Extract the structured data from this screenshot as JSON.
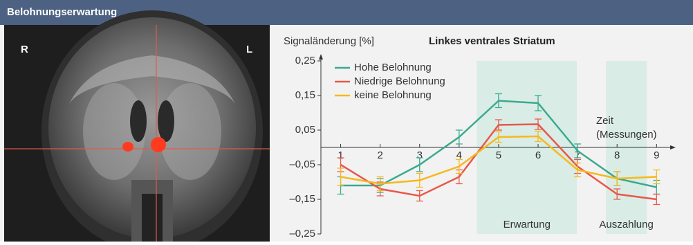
{
  "header": {
    "title": "Belohnungserwartung"
  },
  "image": {
    "left_label": "R",
    "right_label": "L"
  },
  "chart_data": {
    "type": "line",
    "title": "Linkes ventrales Striatum",
    "y_label": "Signaländerung [%]",
    "x_label": [
      "Zeit",
      "(Messungen)"
    ],
    "x": [
      1,
      2,
      3,
      4,
      5,
      6,
      7,
      8,
      9
    ],
    "xlim": [
      0.5,
      9.45
    ],
    "xticks": [
      1,
      2,
      3,
      4,
      5,
      6,
      7,
      8,
      9
    ],
    "ylim": [
      -0.25,
      0.25
    ],
    "yticks": [
      {
        "value": 0.25,
        "label": "0,25"
      },
      {
        "value": 0.15,
        "label": "0,15"
      },
      {
        "value": 0.05,
        "label": "0,05"
      },
      {
        "value": -0.05,
        "label": "–0,05"
      },
      {
        "value": -0.15,
        "label": "–0,15"
      },
      {
        "value": -0.25,
        "label": "–0,25"
      }
    ],
    "legend": "upper left",
    "regions": [
      {
        "label": "Erwartung",
        "xlim": [
          4.45,
          6.98
        ],
        "color": "#d9ece6"
      },
      {
        "label": "Auszahlung",
        "xlim": [
          7.72,
          8.75
        ],
        "color": "#d9ece6"
      }
    ],
    "series": [
      {
        "name": "Hohe Belohnung",
        "color": "#3aaa8e",
        "values": [
          -0.11,
          -0.11,
          -0.05,
          0.03,
          0.135,
          0.128,
          -0.01,
          -0.09,
          -0.115
        ],
        "errors": [
          0.025,
          0.02,
          0.02,
          0.02,
          0.02,
          0.022,
          0.02,
          0.02,
          0.02
        ]
      },
      {
        "name": "Niedrige Belohnung",
        "color": "#e8584a",
        "values": [
          -0.05,
          -0.12,
          -0.14,
          -0.085,
          0.065,
          0.067,
          -0.055,
          -0.135,
          -0.15
        ],
        "errors": [
          0.02,
          0.02,
          0.015,
          0.02,
          0.015,
          0.015,
          0.02,
          0.015,
          0.015
        ]
      },
      {
        "name": "keine Belohnung",
        "color": "#f6b91c",
        "values": [
          -0.085,
          -0.105,
          -0.095,
          -0.055,
          0.03,
          0.032,
          -0.065,
          -0.09,
          -0.085
        ],
        "errors": [
          0.025,
          0.02,
          0.02,
          0.02,
          0.015,
          0.015,
          0.02,
          0.02,
          0.02
        ]
      }
    ]
  }
}
